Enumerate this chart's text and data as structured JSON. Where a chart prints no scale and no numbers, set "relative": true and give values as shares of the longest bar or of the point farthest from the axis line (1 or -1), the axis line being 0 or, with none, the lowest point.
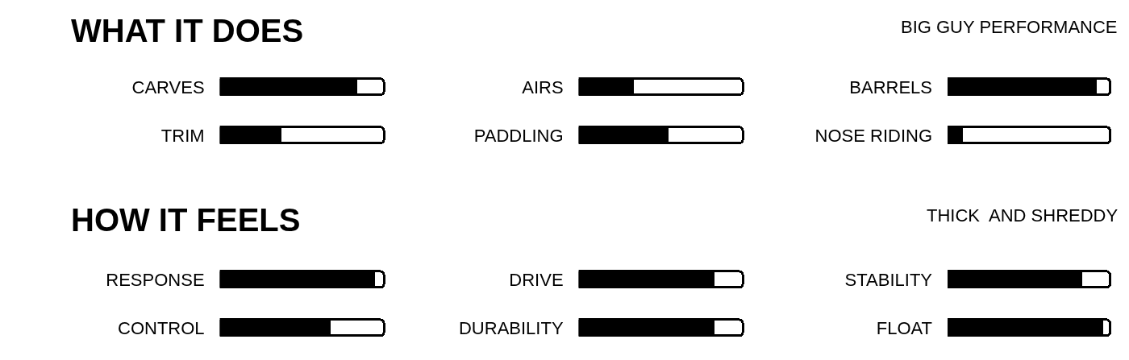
{
  "chart_data": [
    {
      "type": "bar",
      "orientation": "horizontal",
      "relative": true,
      "stacked": true,
      "title": "WHAT IT DOES",
      "categories": [
        "CARVES",
        "TRIM"
      ],
      "series": [
        {
          "color": "#000000",
          "values": [
            0.83,
            0.37
          ]
        },
        {
          "color": "#ffffff",
          "values": [
            0.17,
            0.63
          ]
        }
      ]
    },
    {
      "type": "bar",
      "orientation": "horizontal",
      "relative": true,
      "stacked": true,
      "categories": [
        "AIRS",
        "PADDLING"
      ],
      "series": [
        {
          "color": "#000000",
          "values": [
            0.33,
            0.54
          ]
        },
        {
          "color": "#ffffff",
          "values": [
            0.67,
            0.46
          ]
        }
      ]
    },
    {
      "type": "bar",
      "orientation": "horizontal",
      "relative": true,
      "stacked": true,
      "title": "BIG GUY PERFORMANCE",
      "categories": [
        "BARRELS",
        "NOSE RIDING"
      ],
      "series": [
        {
          "color": "#000000",
          "values": [
            0.91,
            0.09
          ]
        },
        {
          "color": "#ffffff",
          "values": [
            0.09,
            0.91
          ]
        }
      ]
    },
    {
      "type": "bar",
      "orientation": "horizontal",
      "relative": true,
      "stacked": true,
      "title": "HOW IT FEELS",
      "categories": [
        "RESPONSE",
        "CONTROL"
      ],
      "series": [
        {
          "color": "#000000",
          "values": [
            0.94,
            0.67
          ]
        },
        {
          "color": "#ffffff",
          "values": [
            0.06,
            0.33
          ]
        }
      ]
    },
    {
      "type": "bar",
      "orientation": "horizontal",
      "relative": true,
      "stacked": true,
      "categories": [
        "DRIVE",
        "DURABILITY"
      ],
      "series": [
        {
          "color": "#000000",
          "values": [
            0.82,
            0.82
          ]
        },
        {
          "color": "#ffffff",
          "values": [
            0.18,
            0.18
          ]
        }
      ]
    },
    {
      "type": "bar",
      "orientation": "horizontal",
      "relative": true,
      "stacked": true,
      "title": "THICK  AND SHREDDY",
      "categories": [
        "STABILITY",
        "FLOAT"
      ],
      "series": [
        {
          "color": "#000000",
          "values": [
            0.82,
            0.95
          ]
        },
        {
          "color": "#ffffff",
          "values": [
            0.18,
            0.05
          ]
        }
      ]
    }
  ]
}
